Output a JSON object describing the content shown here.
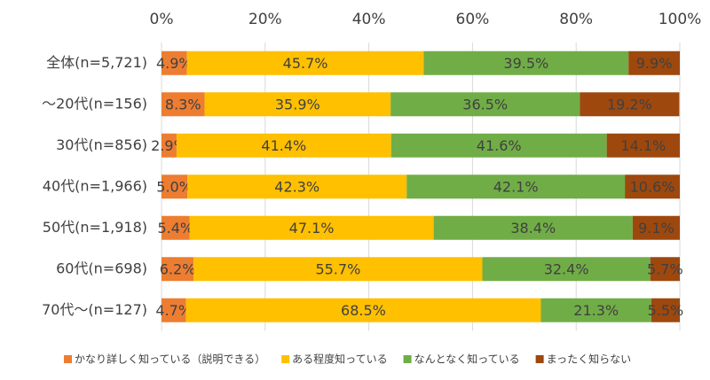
{
  "chart_data": {
    "type": "stacked-bar-horizontal",
    "categories": [
      "全体(n=5,721)",
      "～20代(n=156)",
      "30代(n=856)",
      "40代(n=1,966)",
      "50代(n=1,918)",
      "60代(n=698)",
      "70代～(n=127)"
    ],
    "series": [
      {
        "name": "かなり詳しく知っている（説明できる）",
        "color": "#ED7D31",
        "values": [
          4.9,
          8.3,
          2.9,
          5.0,
          5.4,
          6.2,
          4.7
        ],
        "value_labels": [
          "4.9%",
          "8.3%",
          "2.9%",
          "5.0%",
          "5.4%",
          "6.2%",
          "4.7%"
        ]
      },
      {
        "name": "ある程度知っている",
        "color": "#FFC000",
        "values": [
          45.7,
          35.9,
          41.4,
          42.3,
          47.1,
          55.7,
          68.5
        ],
        "value_labels": [
          "45.7%",
          "35.9%",
          "41.4%",
          "42.3%",
          "47.1%",
          "55.7%",
          "68.5%"
        ]
      },
      {
        "name": "なんとなく知っている",
        "color": "#70AD47",
        "values": [
          39.5,
          36.5,
          41.6,
          42.1,
          38.4,
          32.4,
          21.3
        ],
        "value_labels": [
          "39.5%",
          "36.5%",
          "41.6%",
          "42.1%",
          "38.4%",
          "32.4%",
          "21.3%"
        ]
      },
      {
        "name": "まったく知らない",
        "color": "#9E480E",
        "values": [
          9.9,
          19.2,
          14.1,
          10.6,
          9.1,
          5.7,
          5.5
        ],
        "value_labels": [
          "9.9%",
          "19.2%",
          "14.1%",
          "10.6%",
          "9.1%",
          "5.7%",
          "5.5%"
        ]
      }
    ],
    "xlim": [
      0,
      100
    ],
    "xticks": [
      {
        "value": 0,
        "label": "0%"
      },
      {
        "value": 20,
        "label": "20%"
      },
      {
        "value": 40,
        "label": "40%"
      },
      {
        "value": 60,
        "label": "60%"
      },
      {
        "value": 80,
        "label": "80%"
      },
      {
        "value": 100,
        "label": "100%"
      }
    ],
    "grid": true,
    "legend": "bottom"
  }
}
